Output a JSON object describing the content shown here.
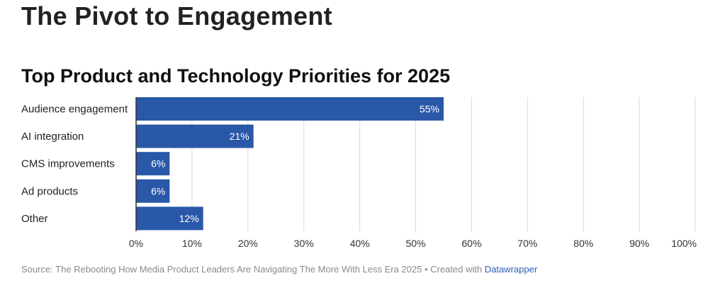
{
  "page": {
    "title": "The Pivot to Engagement"
  },
  "footer": {
    "source": "Source: The Rebooting How Media Product Leaders Are Navigating The More With Less Era 2025 • Created with",
    "link": "Datawrapper"
  },
  "colors": {
    "bar": "#2a58a8",
    "grid": "#d9d9d9",
    "axis": "#333333",
    "label_in_bar": "#ffffff"
  },
  "chart_data": {
    "type": "bar",
    "orientation": "horizontal",
    "title": "Top Product and Technology Priorities for 2025",
    "categories": [
      "Audience engagement",
      "AI integration",
      "CMS improvements",
      "Ad products",
      "Other"
    ],
    "values": [
      55,
      21,
      6,
      6,
      12
    ],
    "value_labels": [
      "55%",
      "21%",
      "6%",
      "6%",
      "12%"
    ],
    "xlim": [
      0,
      100
    ],
    "x_ticks": [
      0,
      10,
      20,
      30,
      40,
      50,
      60,
      70,
      80,
      90,
      100
    ],
    "x_tick_labels": [
      "0%",
      "10%",
      "20%",
      "30%",
      "40%",
      "50%",
      "60%",
      "70%",
      "80%",
      "90%",
      "100%"
    ],
    "grid": true
  }
}
